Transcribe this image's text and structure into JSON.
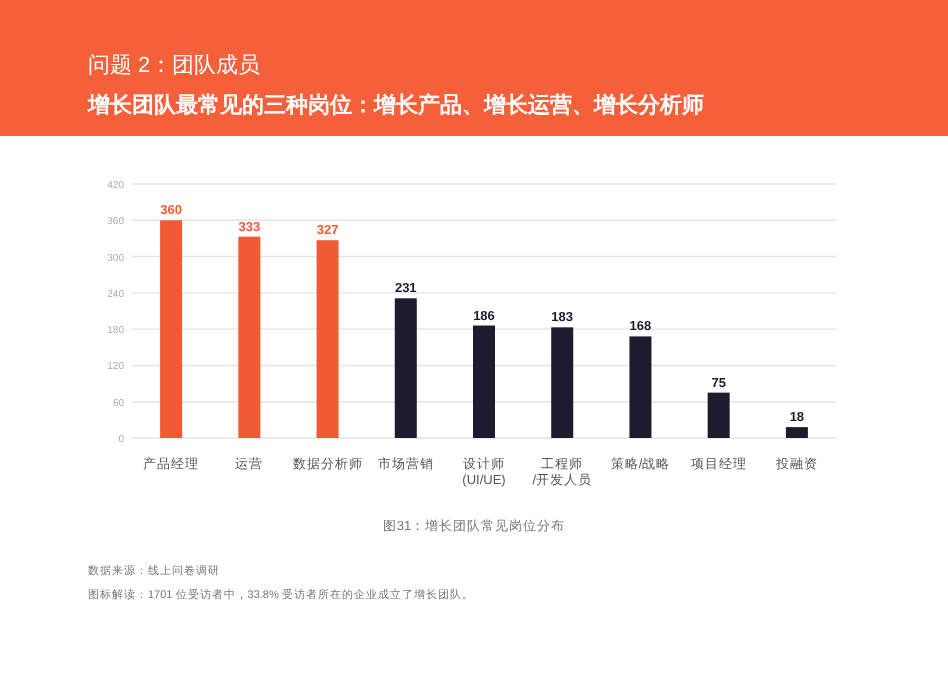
{
  "chart_data": {
    "type": "bar",
    "title": "问题 2：团队成员",
    "subtitle": "增长团队最常见的三种岗位：增长产品、增长运营、增长分析师",
    "categories": [
      "产品经理",
      "运营",
      "数据分析师",
      "市场营销",
      "设计师\n(UI/UE)",
      "工程师\n/开发人员",
      "策略/战略",
      "项目经理",
      "投融资"
    ],
    "values": [
      360,
      333,
      327,
      231,
      186,
      183,
      168,
      75,
      18
    ],
    "colors": [
      "#f05a35",
      "#f05a35",
      "#f05a35",
      "#1e1b2e",
      "#1e1b2e",
      "#1e1b2e",
      "#1e1b2e",
      "#1e1b2e",
      "#1e1b2e"
    ],
    "ylim": [
      0,
      420
    ],
    "yticks": [
      0,
      60,
      120,
      180,
      240,
      300,
      360,
      420
    ],
    "grid": "y",
    "data_labels": true,
    "annotations": [
      "图31：增长团队常见岗位分布",
      "数据来源：线上问卷调研",
      "图标解读：1701 位受访者中，33.8% 受访者所在的企业成立了增长团队。"
    ]
  }
}
